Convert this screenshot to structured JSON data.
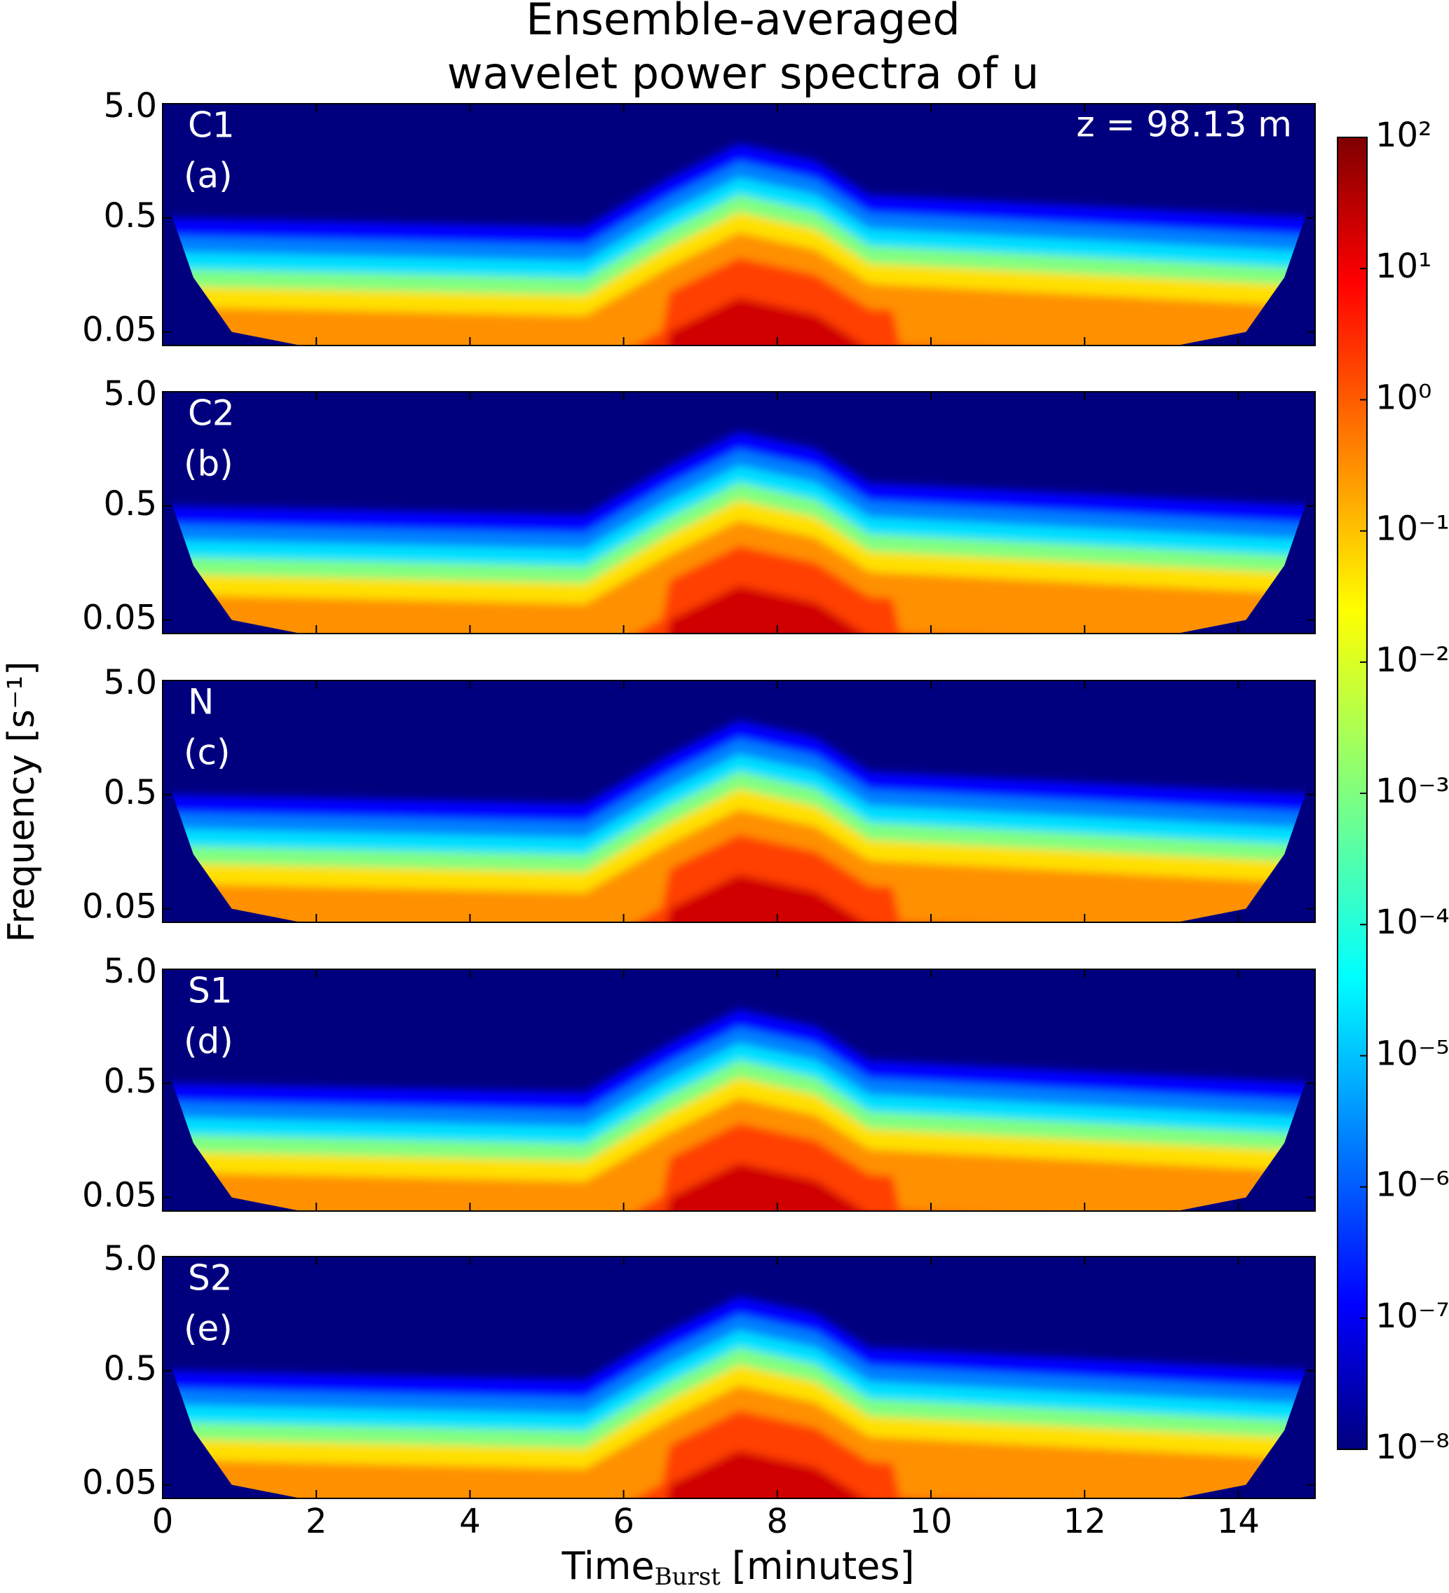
{
  "chart_data": {
    "type": "heatmap",
    "title": [
      "Ensemble-averaged",
      "wavelet power spectra of u"
    ],
    "annotation": "z = 98.13 m",
    "ylabel": "Frequency [s⁻¹]",
    "xlabel": [
      "Time",
      "Burst",
      "[minutes]"
    ],
    "panels": [
      {
        "name": "C1",
        "label": "(a)"
      },
      {
        "name": "C2",
        "label": "(b)"
      },
      {
        "name": "N",
        "label": "(c)"
      },
      {
        "name": "S1",
        "label": "(d)"
      },
      {
        "name": "S2",
        "label": "(e)"
      }
    ],
    "xlim": [
      0,
      15
    ],
    "xticks": [
      0,
      2,
      4,
      6,
      8,
      10,
      12,
      14
    ],
    "ylim": [
      0.038,
      5
    ],
    "ylog": true,
    "yticks": [
      0.05,
      0.5,
      {
        "value": 5,
        "label": "5.0"
      }
    ],
    "colormap": "jet",
    "clog": true,
    "clim": [
      1e-08,
      100
    ],
    "cticks": [
      {
        "value": 1e-08,
        "label": "10⁻⁸"
      },
      {
        "value": 1e-07,
        "label": "10⁻⁷"
      },
      {
        "value": 1e-06,
        "label": "10⁻⁶"
      },
      {
        "value": 1e-05,
        "label": "10⁻⁵"
      },
      {
        "value": 0.0001,
        "label": "10⁻⁴"
      },
      {
        "value": 0.001,
        "label": "10⁻³"
      },
      {
        "value": 0.01,
        "label": "10⁻²"
      },
      {
        "value": 0.1,
        "label": "10⁻¹"
      },
      {
        "value": 1,
        "label": "10⁰"
      },
      {
        "value": 10,
        "label": "10¹"
      },
      {
        "value": 100,
        "label": "10²"
      }
    ]
  }
}
